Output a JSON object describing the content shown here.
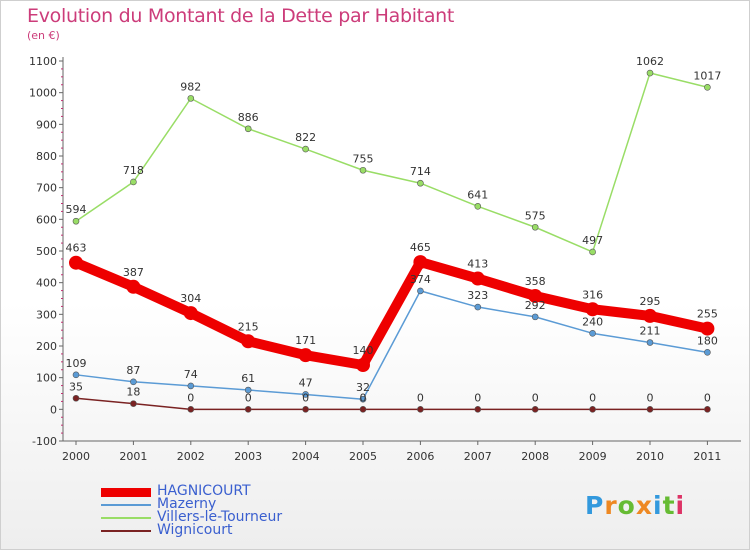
{
  "chart_data": {
    "type": "line",
    "title": "Evolution du Montant de la Dette par Habitant",
    "subtitle": "(en €)",
    "categories": [
      "2000",
      "2001",
      "2002",
      "2003",
      "2004",
      "2005",
      "2006",
      "2007",
      "2008",
      "2009",
      "2010",
      "2011"
    ],
    "ylim": [
      -100,
      1100
    ],
    "yticks": [
      -100,
      0,
      100,
      200,
      300,
      400,
      500,
      600,
      700,
      800,
      900,
      1000,
      1100
    ],
    "grid": false,
    "legend_position": "bottom-left",
    "series": [
      {
        "name": "HAGNICOURT",
        "color": "#ee0000",
        "emphasis": true,
        "values": [
          463,
          387,
          304,
          215,
          171,
          140,
          465,
          413,
          358,
          316,
          295,
          255
        ]
      },
      {
        "name": "Mazerny",
        "color": "#5b9bd5",
        "emphasis": false,
        "values": [
          109,
          87,
          74,
          61,
          47,
          32,
          374,
          323,
          292,
          240,
          211,
          180
        ]
      },
      {
        "name": "Villers-le-Tourneur",
        "color": "#99dd66",
        "emphasis": false,
        "values": [
          594,
          718,
          982,
          886,
          822,
          755,
          714,
          641,
          575,
          497,
          1062,
          1017
        ]
      },
      {
        "name": "Wignicourt",
        "color": "#7a2222",
        "emphasis": false,
        "values": [
          35,
          18,
          0,
          0,
          0,
          0,
          0,
          0,
          0,
          0,
          0,
          0
        ]
      }
    ]
  },
  "logo": {
    "letters": [
      "P",
      "r",
      "o",
      "x",
      "i",
      "t",
      "i"
    ],
    "colors": [
      "#3399dd",
      "#ee8822",
      "#66bb33",
      "#ee8822",
      "#3399dd",
      "#66bb33",
      "#dd3366"
    ]
  }
}
